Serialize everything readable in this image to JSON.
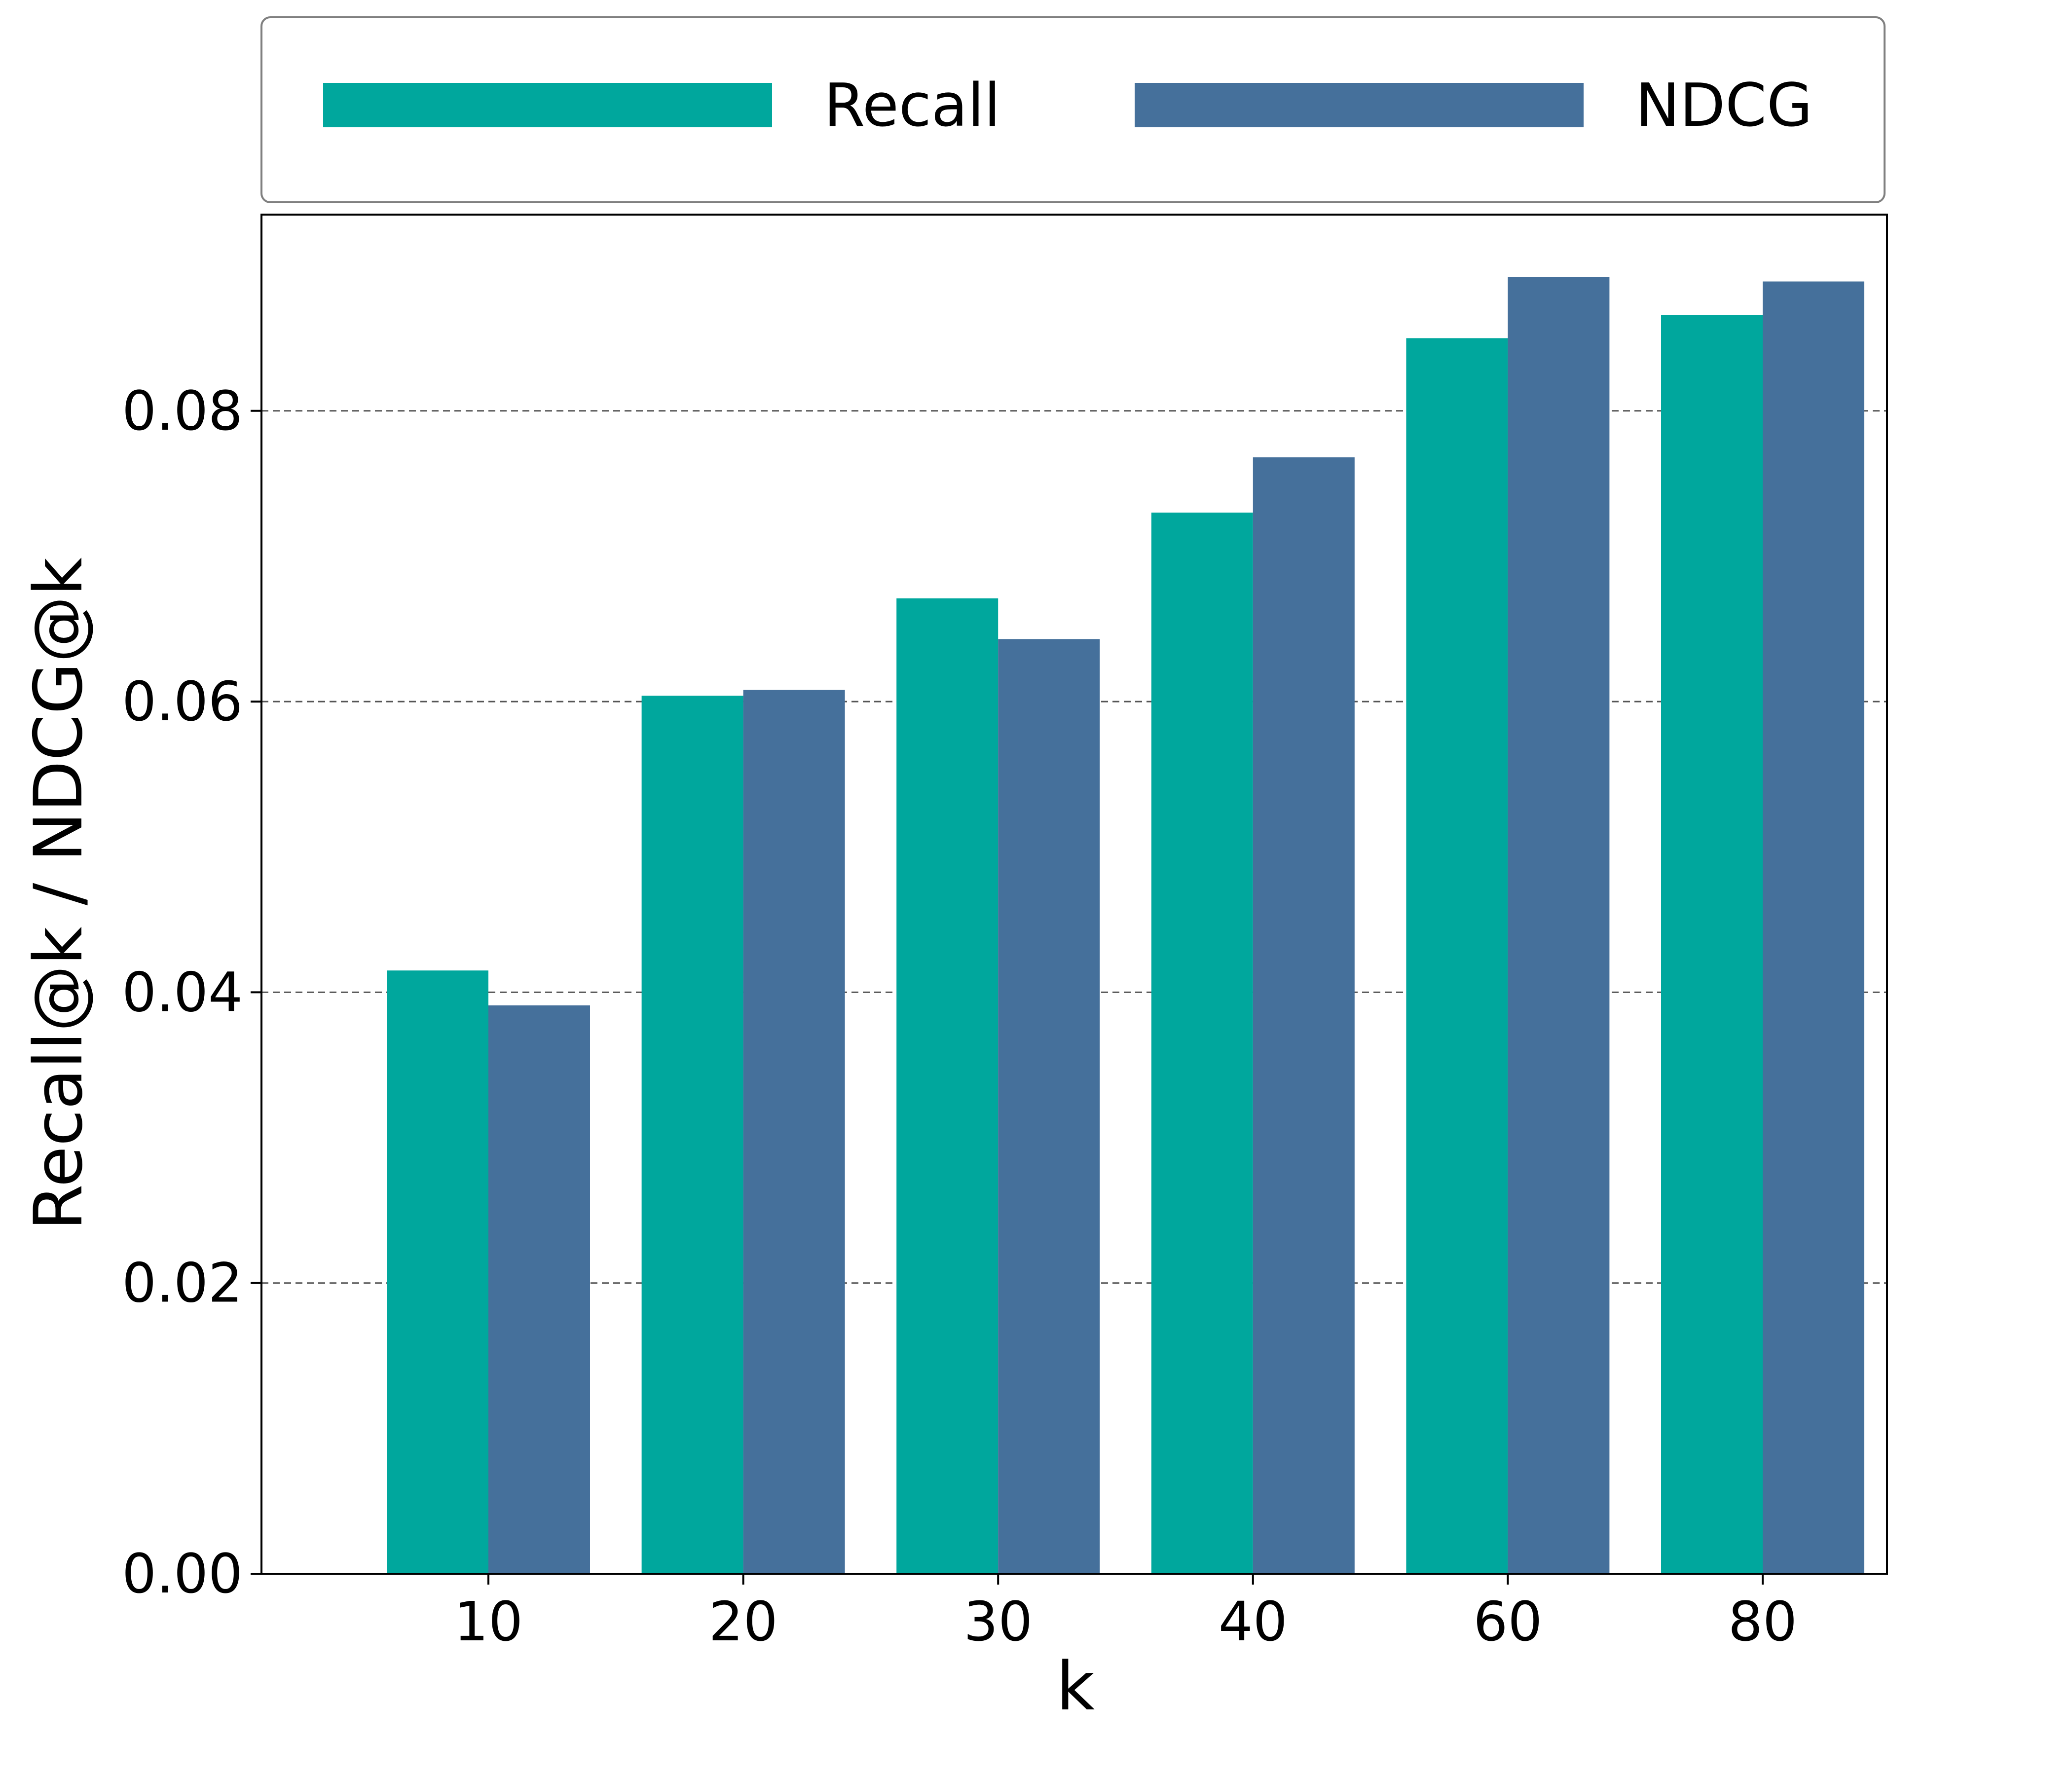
{
  "chart_data": {
    "type": "bar",
    "title": "",
    "xlabel": "k",
    "ylabel": "Recall@k / NDCG@k",
    "categories": [
      "10",
      "20",
      "30",
      "40",
      "60",
      "80"
    ],
    "series": [
      {
        "name": "Recall",
        "color": "#00A79D",
        "values": [
          0.0415,
          0.0604,
          0.0671,
          0.073,
          0.085,
          0.0866
        ]
      },
      {
        "name": "NDCG",
        "color": "#45709B",
        "values": [
          0.0391,
          0.0608,
          0.0643,
          0.0768,
          0.0892,
          0.0889
        ]
      }
    ],
    "ylim": [
      0,
      0.0935
    ],
    "yticks": [
      0.0,
      0.02,
      0.04,
      0.06,
      0.08
    ],
    "ytick_labels": [
      "0.00",
      "0.02",
      "0.04",
      "0.06",
      "0.08"
    ],
    "grid": "horizontal dashed",
    "legend": {
      "placement": "top",
      "entries": [
        "Recall",
        "NDCG"
      ]
    }
  }
}
